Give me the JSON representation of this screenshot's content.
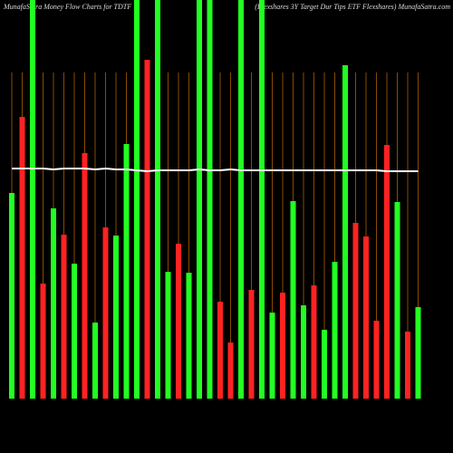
{
  "chart_data": {
    "type": "bar",
    "title": "MunafaSatra  Money Flow  Charts for TDTF",
    "subtitle": "(Flexshares 3Y Target Dur Tips ETF Flexshares) MunafaSatra.com",
    "categories": [
      null,
      null,
      null,
      null,
      null,
      null,
      null,
      null,
      null,
      null,
      null,
      null,
      null,
      null,
      null,
      null,
      null,
      null,
      null,
      null,
      null,
      null,
      null,
      null,
      null,
      null,
      null,
      null,
      null,
      null,
      null,
      null,
      null,
      null,
      null,
      null,
      null,
      null,
      null,
      null
    ],
    "values": [
      227,
      311,
      440,
      127,
      210,
      181,
      149,
      271,
      84,
      189,
      180,
      281,
      440,
      374,
      440,
      140,
      171,
      139,
      440,
      440,
      107,
      62,
      440,
      120,
      440,
      95,
      117,
      218,
      103,
      125,
      76,
      151,
      368,
      194,
      179,
      86,
      280,
      217,
      74,
      101
    ],
    "colors": [
      "#22ff22",
      "#ff2222",
      "#22ff22",
      "#ff2222",
      "#22ff22",
      "#ff2222",
      "#22ff22",
      "#ff2222",
      "#22ff22",
      "#ff2222",
      "#22ff22",
      "#22ff22",
      "#22ff22",
      "#ff2222",
      "#22ff22",
      "#22ff22",
      "#ff2222",
      "#22ff22",
      "#22ff22",
      "#22ff22",
      "#ff2222",
      "#ff2222",
      "#22ff22",
      "#ff2222",
      "#22ff22",
      "#22ff22",
      "#ff2222",
      "#22ff22",
      "#22ff22",
      "#ff2222",
      "#22ff22",
      "#22ff22",
      "#22ff22",
      "#ff2222",
      "#ff2222",
      "#ff2222",
      "#ff2222",
      "#22ff22",
      "#ff2222",
      "#22ff22"
    ],
    "line": {
      "color": "#ffffff",
      "values": [
        254,
        254,
        254,
        254,
        253,
        254,
        254,
        254,
        253,
        254,
        253,
        253,
        252,
        251,
        252,
        252,
        252,
        252,
        253,
        252,
        252,
        253,
        252,
        252,
        252,
        252,
        252,
        252,
        252,
        252,
        252,
        252,
        252,
        252,
        252,
        252,
        251,
        251,
        251,
        251
      ]
    },
    "ylim": [
      0,
      440
    ],
    "grid": true,
    "grid_color": "#8a4a00"
  }
}
